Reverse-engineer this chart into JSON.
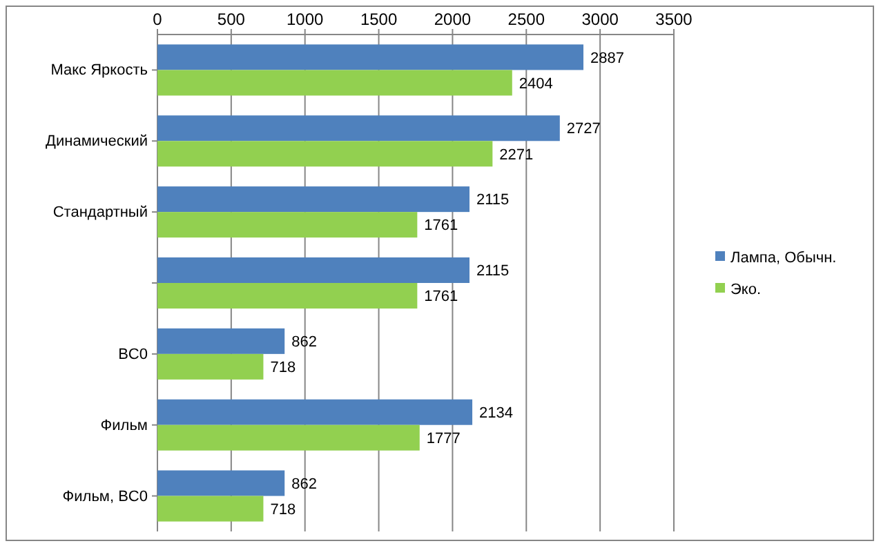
{
  "chart_data": {
    "type": "bar",
    "orientation": "horizontal",
    "categories": [
      "Макс Яркость",
      "Динамический",
      "Стандартный",
      null,
      "BC0",
      "Фильм",
      "Фильм, BC0"
    ],
    "series": [
      {
        "name": "Лампа, Обычн.",
        "color": "#4f81bd",
        "values": [
          2887,
          2727,
          2115,
          2115,
          862,
          2134,
          862
        ]
      },
      {
        "name": "Эко.",
        "color": "#92d050",
        "values": [
          2404,
          2271,
          1761,
          1761,
          718,
          1777,
          718
        ]
      }
    ],
    "xlim": [
      0,
      3500
    ],
    "xticks": [
      0,
      500,
      1000,
      1500,
      2000,
      2500,
      3000,
      3500
    ],
    "grid": "x",
    "legend": "right",
    "data_labels": true
  }
}
